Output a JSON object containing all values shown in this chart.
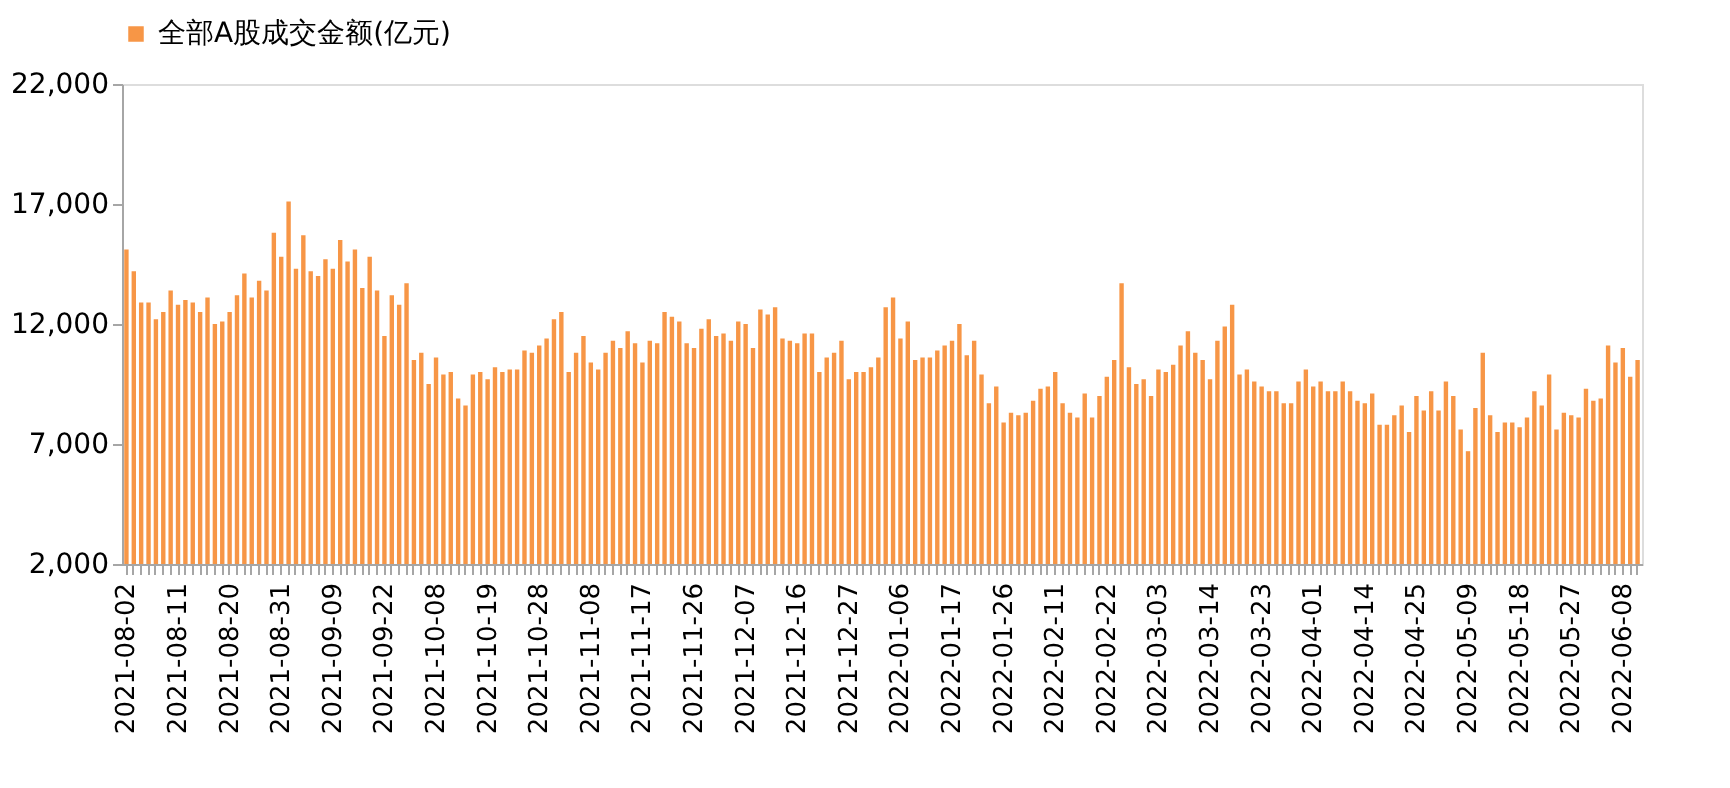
{
  "chart_data": {
    "type": "bar",
    "categories": [
      "2021-08-02",
      null,
      null,
      null,
      null,
      null,
      null,
      "2021-08-11",
      null,
      null,
      null,
      null,
      null,
      null,
      "2021-08-20",
      null,
      null,
      null,
      null,
      null,
      null,
      "2021-08-31",
      null,
      null,
      null,
      null,
      null,
      null,
      "2021-09-09",
      null,
      null,
      null,
      null,
      null,
      null,
      "2021-09-22",
      null,
      null,
      null,
      null,
      null,
      null,
      "2021-10-08",
      null,
      null,
      null,
      null,
      null,
      null,
      "2021-10-19",
      null,
      null,
      null,
      null,
      null,
      null,
      "2021-10-28",
      null,
      null,
      null,
      null,
      null,
      null,
      "2021-11-08",
      null,
      null,
      null,
      null,
      null,
      null,
      "2021-11-17",
      null,
      null,
      null,
      null,
      null,
      null,
      "2021-11-26",
      null,
      null,
      null,
      null,
      null,
      null,
      "2021-12-07",
      null,
      null,
      null,
      null,
      null,
      null,
      "2021-12-16",
      null,
      null,
      null,
      null,
      null,
      null,
      "2021-12-27",
      null,
      null,
      null,
      null,
      null,
      null,
      "2022-01-06",
      null,
      null,
      null,
      null,
      null,
      null,
      "2022-01-17",
      null,
      null,
      null,
      null,
      null,
      null,
      "2022-01-26",
      null,
      null,
      null,
      null,
      null,
      null,
      "2022-02-11",
      null,
      null,
      null,
      null,
      null,
      null,
      "2022-02-22",
      null,
      null,
      null,
      null,
      null,
      null,
      "2022-03-03",
      null,
      null,
      null,
      null,
      null,
      null,
      "2022-03-14",
      null,
      null,
      null,
      null,
      null,
      null,
      "2022-03-23",
      null,
      null,
      null,
      null,
      null,
      null,
      "2022-04-01",
      null,
      null,
      null,
      null,
      null,
      null,
      "2022-04-14",
      null,
      null,
      null,
      null,
      null,
      null,
      "2022-04-25",
      null,
      null,
      null,
      null,
      null,
      null,
      "2022-05-09",
      null,
      null,
      null,
      null,
      null,
      null,
      "2022-05-18",
      null,
      null,
      null,
      null,
      null,
      null,
      "2022-05-27",
      null,
      null,
      null,
      null,
      null,
      null,
      "2022-06-08",
      null,
      null
    ],
    "series": [
      {
        "name": "全部A股成交金额(亿元)",
        "color": "#f79646",
        "values": [
          15100,
          14200,
          12900,
          12900,
          12200,
          12500,
          13400,
          12800,
          13000,
          12900,
          12500,
          13100,
          12000,
          12100,
          12500,
          13200,
          14100,
          13100,
          13800,
          13400,
          15800,
          14800,
          17100,
          14300,
          15700,
          14200,
          14000,
          14700,
          14300,
          15500,
          14600,
          15100,
          13500,
          14800,
          13400,
          11500,
          13200,
          12800,
          13700,
          10500,
          10800,
          9500,
          10600,
          9900,
          10000,
          8900,
          8600,
          9900,
          10000,
          9700,
          10200,
          10000,
          10100,
          10100,
          10900,
          10800,
          11100,
          11400,
          12200,
          12500,
          10000,
          10800,
          11500,
          10400,
          10100,
          10800,
          11300,
          11000,
          11700,
          11200,
          10400,
          11300,
          11200,
          12500,
          12300,
          12100,
          11200,
          11000,
          11800,
          12200,
          11500,
          11600,
          11300,
          12100,
          12000,
          11000,
          12600,
          12400,
          12700,
          11400,
          11300,
          11200,
          11600,
          11600,
          10000,
          10600,
          10800,
          11300,
          9700,
          10000,
          10000,
          10200,
          10600,
          12700,
          13100,
          11400,
          12100,
          10500,
          10600,
          10600,
          10900,
          11100,
          11300,
          12000,
          10700,
          11300,
          9900,
          8700,
          9400,
          7900,
          8300,
          8200,
          8300,
          8800,
          9300,
          9400,
          10000,
          8700,
          8300,
          8100,
          9100,
          8100,
          9000,
          9800,
          10500,
          13700,
          10200,
          9500,
          9700,
          9000,
          10100,
          10000,
          10300,
          11100,
          11700,
          10800,
          10500,
          9700,
          11300,
          11900,
          12800,
          9900,
          10100,
          9600,
          9400,
          9200,
          9200,
          8700,
          8700,
          9600,
          10100,
          9400,
          9600,
          9200,
          9200,
          9600,
          9200,
          8800,
          8700,
          9100,
          7800,
          7800,
          8200,
          8600,
          7500,
          9000,
          8400,
          9200,
          8400,
          9600,
          9000,
          7600,
          6700,
          8500,
          10800,
          8200,
          7500,
          7900,
          7900,
          7700,
          8100,
          9200,
          8600,
          9900,
          7600,
          8300,
          8200,
          8100,
          9300,
          8800,
          8900,
          11100,
          10400,
          11000,
          9800,
          10500
        ]
      }
    ],
    "ylim": [
      2000,
      22000
    ],
    "yticks": [
      {
        "value": 2000,
        "label": "2,000"
      },
      {
        "value": 7000,
        "label": "7,000"
      },
      {
        "value": 12000,
        "label": "12,000"
      },
      {
        "value": 17000,
        "label": "17,000"
      },
      {
        "value": 22000,
        "label": "22,000"
      }
    ],
    "legend": "top",
    "grid": false
  }
}
